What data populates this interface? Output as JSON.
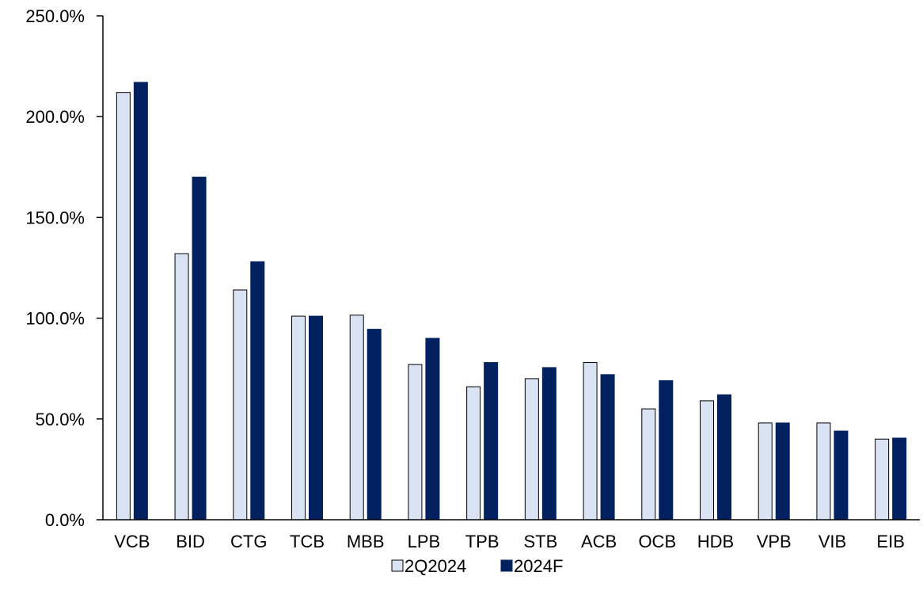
{
  "chart_data": {
    "type": "bar",
    "title": "",
    "xlabel": "",
    "ylabel": "",
    "categories": [
      "VCB",
      "BID",
      "CTG",
      "TCB",
      "MBB",
      "LPB",
      "TPB",
      "STB",
      "ACB",
      "OCB",
      "HDB",
      "VPB",
      "VIB",
      "EIB"
    ],
    "series": [
      {
        "name": "2Q2024",
        "color": "#dae3f3",
        "stroke": "#000000",
        "values": [
          212,
          132,
          114,
          101,
          101.5,
          77,
          66,
          70,
          78,
          55,
          59,
          48,
          48,
          40
        ]
      },
      {
        "name": "2024F",
        "color": "#002060",
        "stroke": "#002060",
        "values": [
          217,
          170,
          128,
          101,
          94.5,
          90,
          78,
          75.5,
          72,
          69,
          62,
          48,
          44,
          40.5
        ]
      }
    ],
    "ylim": [
      0,
      250
    ],
    "yticks": [
      0,
      50,
      100,
      150,
      200,
      250
    ],
    "ytick_labels": [
      "0.0%",
      "50.0%",
      "100.0%",
      "150.0%",
      "200.0%",
      "250.0%"
    ],
    "grid": false,
    "legend": "bottom-center"
  }
}
